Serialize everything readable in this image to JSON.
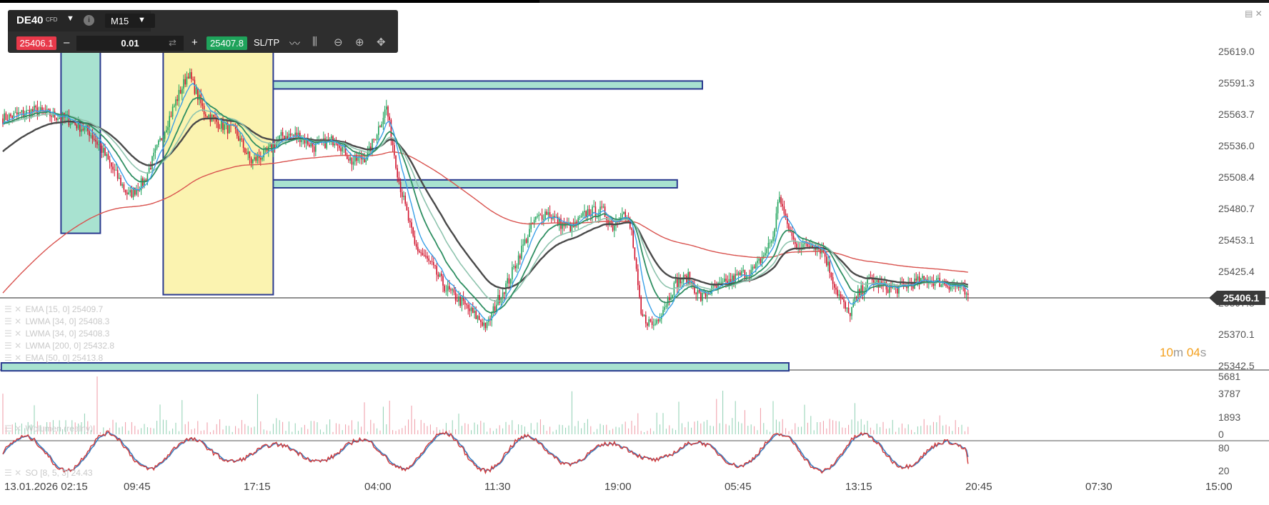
{
  "toolbar": {
    "symbol": "DE40",
    "symbol_type": "CFD",
    "timeframe": "M15",
    "sell_price": "25406.1",
    "buy_price": "25407.8",
    "quantity": "0.01",
    "sltp_label": "SL/TP",
    "minus": "–",
    "plus": "+"
  },
  "colors": {
    "sell": "#e8394a",
    "buy": "#1fa35b",
    "candle_up": "#1fa35b",
    "candle_down": "#d0112b",
    "ema15": "#3aa0e8",
    "lwma34_a": "#2f8f62",
    "lwma34_b": "#8fc4ae",
    "lwma200": "#d9534f",
    "ema50": "#4a4a4a",
    "zone_fill": "#a8e2d0",
    "zone_border": "#2a3a8f",
    "highlight_fill": "#fbf3b0",
    "countdown": "#f3a01d"
  },
  "countdown": {
    "minutes": "10",
    "m": "m",
    "seconds": "04",
    "s": "s"
  },
  "current_price": "25406.1",
  "legend": [
    {
      "text": "EMA [15, 0] 25409.7"
    },
    {
      "text": "LWMA [34, 0] 25408.3"
    },
    {
      "text": "LWMA [34, 0] 25408.3"
    },
    {
      "text": "LWMA [200, 0] 25432.8"
    },
    {
      "text": "EMA [50, 0] 25413.8"
    }
  ],
  "volume_legend": "Wolumen (realny)",
  "so_legend": "SO [8, 5, 3] 24.43",
  "chart_data": {
    "type": "candlestick",
    "symbol": "DE40",
    "timeframe": "M15",
    "price_axis": {
      "ticks": [
        "25619.0",
        "25591.3",
        "25563.7",
        "25536.0",
        "25508.4",
        "25480.7",
        "25453.1",
        "25425.4",
        "25397.8",
        "25370.1",
        "25342.5"
      ],
      "range": [
        25342.5,
        25633.0
      ]
    },
    "time_axis": {
      "ticks": [
        "13.01.2026 02:15",
        "09:45",
        "17:15",
        "04:00",
        "11:30",
        "19:00",
        "05:45",
        "13:15",
        "20:45",
        "07:30",
        "15:00"
      ]
    },
    "close_path": [
      [
        0,
        25560
      ],
      [
        20,
        25567
      ],
      [
        40,
        25560
      ],
      [
        55,
        25548
      ],
      [
        62,
        25535
      ],
      [
        70,
        25515
      ],
      [
        80,
        25492
      ],
      [
        90,
        25505
      ],
      [
        100,
        25540
      ],
      [
        110,
        25575
      ],
      [
        118,
        25600
      ],
      [
        128,
        25566
      ],
      [
        138,
        25555
      ],
      [
        148,
        25548
      ],
      [
        158,
        25522
      ],
      [
        168,
        25530
      ],
      [
        178,
        25545
      ],
      [
        188,
        25545
      ],
      [
        198,
        25535
      ],
      [
        212,
        25542
      ],
      [
        222,
        25522
      ],
      [
        232,
        25527
      ],
      [
        244,
        25570
      ],
      [
        252,
        25505
      ],
      [
        262,
        25448
      ],
      [
        272,
        25432
      ],
      [
        282,
        25410
      ],
      [
        292,
        25398
      ],
      [
        300,
        25387
      ],
      [
        308,
        25377
      ],
      [
        314,
        25398
      ],
      [
        322,
        25418
      ],
      [
        330,
        25445
      ],
      [
        338,
        25470
      ],
      [
        346,
        25478
      ],
      [
        354,
        25468
      ],
      [
        362,
        25463
      ],
      [
        372,
        25478
      ],
      [
        382,
        25478
      ],
      [
        388,
        25465
      ],
      [
        394,
        25480
      ],
      [
        400,
        25460
      ],
      [
        406,
        25386
      ],
      [
        414,
        25378
      ],
      [
        420,
        25393
      ],
      [
        428,
        25415
      ],
      [
        436,
        25420
      ],
      [
        444,
        25402
      ],
      [
        452,
        25410
      ],
      [
        460,
        25415
      ],
      [
        470,
        25423
      ],
      [
        478,
        25427
      ],
      [
        484,
        25440
      ],
      [
        490,
        25456
      ],
      [
        494,
        25493
      ],
      [
        498,
        25470
      ],
      [
        504,
        25449
      ],
      [
        510,
        25448
      ],
      [
        516,
        25450
      ],
      [
        522,
        25443
      ],
      [
        530,
        25410
      ],
      [
        538,
        25387
      ],
      [
        544,
        25405
      ],
      [
        552,
        25418
      ],
      [
        560,
        25412
      ],
      [
        568,
        25410
      ],
      [
        576,
        25414
      ],
      [
        584,
        25417
      ],
      [
        590,
        25418
      ],
      [
        596,
        25416
      ],
      [
        604,
        25413
      ],
      [
        610,
        25411
      ],
      [
        614,
        25400
      ]
    ],
    "series": [
      {
        "name": "EMA [15, 0]",
        "last": 25409.7
      },
      {
        "name": "LWMA [34, 0]",
        "last": 25408.3
      },
      {
        "name": "LWMA [34, 0]",
        "last": 25408.3
      },
      {
        "name": "LWMA [200, 0]",
        "last": 25432.8
      },
      {
        "name": "EMA [50, 0]",
        "last": 25413.8
      }
    ],
    "zones": [
      {
        "type": "support/resistance",
        "from_bar": 140,
        "to_bar": 445,
        "top": 25593,
        "bottom": 25586
      },
      {
        "type": "support/resistance",
        "from_bar": 163,
        "to_bar": 429,
        "top": 25506,
        "bottom": 25499
      },
      {
        "type": "support/resistance",
        "from_bar": -1,
        "to_bar": 500,
        "top": 25345,
        "bottom": 25338
      },
      {
        "type": "vertical",
        "from_bar": 37,
        "to_bar": 62,
        "top": 25628,
        "bottom": 25459
      },
      {
        "type": "highlight",
        "from_bar": 102,
        "to_bar": 172,
        "top": 25633,
        "bottom": 25405
      }
    ],
    "volume": {
      "ticks": [
        "5681",
        "3787",
        "1893",
        "0"
      ],
      "max": 5681
    },
    "stochastic": {
      "ticks": [
        "80",
        "20"
      ],
      "name": "SO [8, 5, 3]",
      "last": 24.43
    }
  }
}
